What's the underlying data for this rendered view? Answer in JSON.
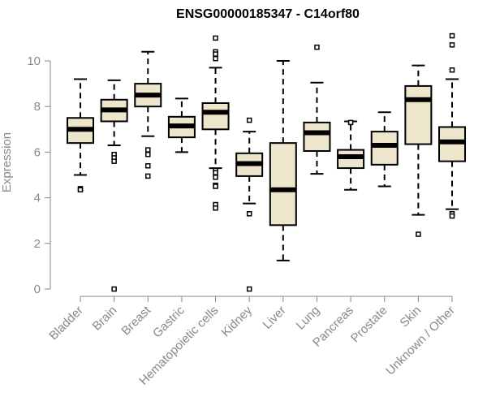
{
  "chart_data": {
    "type": "boxplot",
    "title": "ENSG00000185347 - C14orf80",
    "xlabel": "",
    "ylabel": "Expression",
    "ylim": [
      0,
      11.5
    ],
    "yticks": [
      0,
      2,
      4,
      6,
      8,
      10
    ],
    "grid": false,
    "legend": "none",
    "box_fill": "#ede6cc",
    "box_stroke": "#000000",
    "median_color": "#000000",
    "axis_color": "#888888",
    "categories": [
      "Bladder",
      "Brain",
      "Breast",
      "Gastric",
      "Hematopoietic cells",
      "Kidney",
      "Liver",
      "Lung",
      "Pancreas",
      "Prostate",
      "Skin",
      "Unknown / Other"
    ],
    "boxes": [
      {
        "category": "Bladder",
        "whisker_low": 5.0,
        "q1": 6.4,
        "median": 7.0,
        "q3": 7.5,
        "whisker_high": 9.2,
        "outliers": [
          4.4,
          4.35
        ]
      },
      {
        "category": "Brain",
        "whisker_low": 6.3,
        "q1": 7.35,
        "median": 7.85,
        "q3": 8.3,
        "whisker_high": 9.15,
        "outliers": [
          5.9,
          5.75,
          5.6,
          0.0
        ]
      },
      {
        "category": "Breast",
        "whisker_low": 6.7,
        "q1": 8.0,
        "median": 8.5,
        "q3": 9.0,
        "whisker_high": 10.4,
        "outliers": [
          6.1,
          5.9,
          5.4,
          4.95
        ]
      },
      {
        "category": "Gastric",
        "whisker_low": 6.0,
        "q1": 6.65,
        "median": 7.15,
        "q3": 7.55,
        "whisker_high": 8.35,
        "outliers": []
      },
      {
        "category": "Hematopoietic cells",
        "whisker_low": 5.3,
        "q1": 7.0,
        "median": 7.75,
        "q3": 8.15,
        "whisker_high": 9.7,
        "outliers": [
          11.0,
          10.4,
          10.3,
          10.1,
          5.2,
          5.1,
          4.9,
          4.55,
          4.5,
          3.7,
          3.55
        ]
      },
      {
        "category": "Kidney",
        "whisker_low": 3.75,
        "q1": 4.95,
        "median": 5.5,
        "q3": 5.95,
        "whisker_high": 6.9,
        "outliers": [
          7.4,
          3.3,
          0.0
        ]
      },
      {
        "category": "Liver",
        "whisker_low": 1.25,
        "q1": 2.8,
        "median": 4.35,
        "q3": 6.4,
        "whisker_high": 10.0,
        "outliers": []
      },
      {
        "category": "Lung",
        "whisker_low": 5.05,
        "q1": 6.05,
        "median": 6.85,
        "q3": 7.3,
        "whisker_high": 9.05,
        "outliers": [
          10.6
        ]
      },
      {
        "category": "Pancreas",
        "whisker_low": 4.35,
        "q1": 5.3,
        "median": 5.8,
        "q3": 6.1,
        "whisker_high": 7.35,
        "outliers": [
          7.3
        ]
      },
      {
        "category": "Prostate",
        "whisker_low": 4.5,
        "q1": 5.45,
        "median": 6.3,
        "q3": 6.9,
        "whisker_high": 7.75,
        "outliers": []
      },
      {
        "category": "Skin",
        "whisker_low": 3.25,
        "q1": 6.35,
        "median": 8.3,
        "q3": 8.9,
        "whisker_high": 9.8,
        "outliers": [
          2.4
        ]
      },
      {
        "category": "Unknown / Other",
        "whisker_low": 3.5,
        "q1": 5.6,
        "median": 6.45,
        "q3": 7.1,
        "whisker_high": 9.2,
        "outliers": [
          11.1,
          10.7,
          9.6,
          3.3,
          3.2
        ]
      }
    ]
  }
}
